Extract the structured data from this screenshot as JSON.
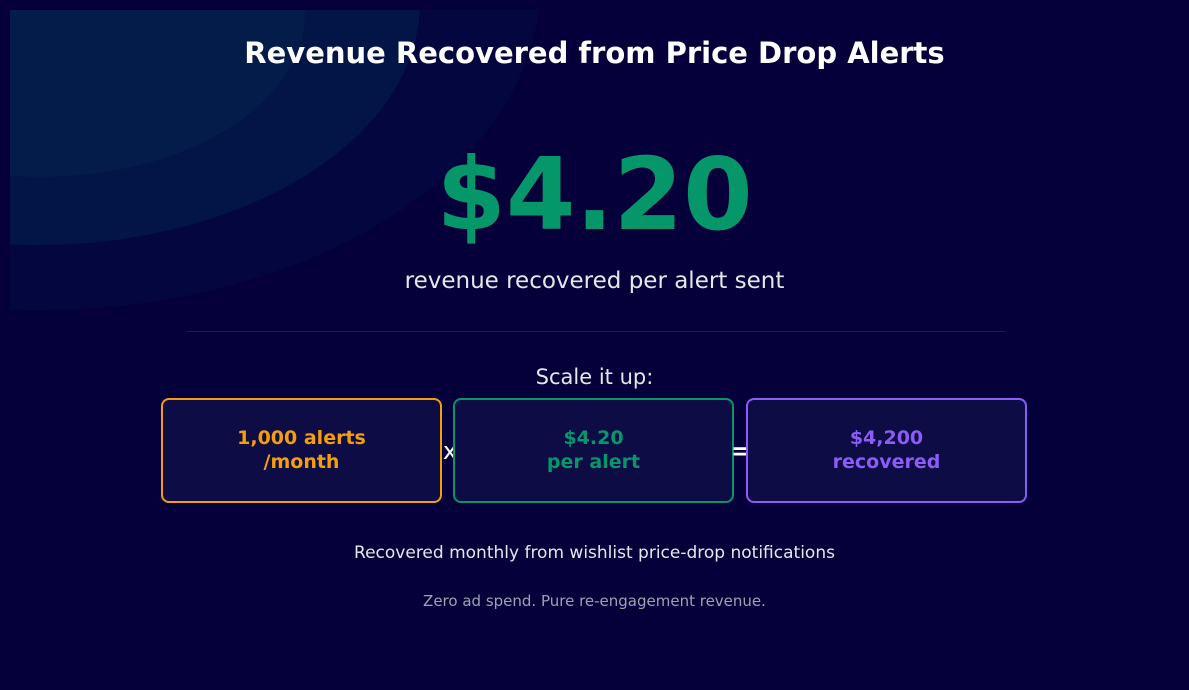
{
  "title": "Revenue Recovered from Price Drop Alerts",
  "headline_value": "$4.20",
  "subtitle": "revenue recovered per alert sent",
  "scale_label": "Scale it up:",
  "cards": [
    {
      "line1": "1,000 alerts",
      "line2": "/month",
      "color": "#f59e0b"
    },
    {
      "line1": "$4.20",
      "line2": "per alert",
      "color": "#059669"
    },
    {
      "line1": "$4,200",
      "line2": "recovered",
      "color": "#8b5cf6"
    }
  ],
  "operators": {
    "times": "x",
    "equals": "="
  },
  "note": "Recovered monthly from wishlist price-drop notifications",
  "tagline": "Zero ad spend. Pure re-engagement revenue.",
  "colors": {
    "background": "#06003a",
    "accent_green": "#059669",
    "accent_orange": "#f59e0b",
    "accent_purple": "#8b5cf6"
  }
}
